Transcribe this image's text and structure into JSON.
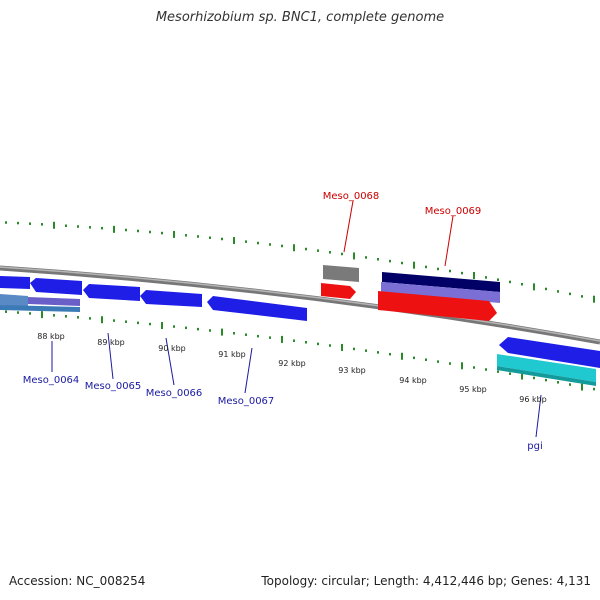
{
  "title": "Mesorhizobium sp. BNC1, complete genome",
  "footer": {
    "accession": "Accession: NC_008254",
    "summary": "Topology: circular; Length: 4,412,446 bp; Genes: 4,131"
  },
  "colors": {
    "backbone": "#8c8c8c",
    "tick": "#2a8a2a",
    "forward_label": "#cc0000",
    "reverse_label": "#1a1aa0",
    "gene_blue": "#1e1ee6",
    "gene_red": "#ee1111",
    "gene_gray": "#7a7a7a",
    "gene_navy": "#000066",
    "gene_lavender": "#7b6fd6",
    "gene_steel": "#5a8ac6",
    "gene_cyan": "#20c8d0",
    "gene_teal": "#139a9a"
  },
  "scale": {
    "unit": "kbp",
    "labels": [
      "88 kbp",
      "89 kbp",
      "90 kbp",
      "91 kbp",
      "92 kbp",
      "93 kbp",
      "94 kbp",
      "95 kbp",
      "96 kbp"
    ]
  },
  "genes": [
    {
      "name": "Meso_0064",
      "strand": "reverse"
    },
    {
      "name": "Meso_0065",
      "strand": "reverse"
    },
    {
      "name": "Meso_0066",
      "strand": "reverse"
    },
    {
      "name": "Meso_0067",
      "strand": "reverse"
    },
    {
      "name": "Meso_0068",
      "strand": "forward"
    },
    {
      "name": "Meso_0069",
      "strand": "forward"
    },
    {
      "name": "pgi",
      "strand": "reverse"
    }
  ]
}
